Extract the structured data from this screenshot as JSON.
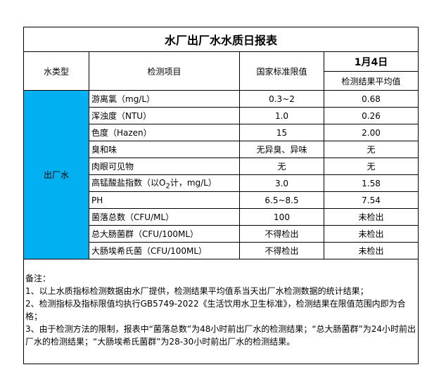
{
  "title": "水厂出厂水水质日报表",
  "headers": {
    "type": "水类型",
    "item": "检测项目",
    "standard": "国家标准限值",
    "date": "1月4日",
    "result": "检测结果平均值"
  },
  "water_type": "出厂水",
  "accent_color": "#00B0F0",
  "rows": [
    {
      "item": "游离氯（mg/L）",
      "standard": "0.3~2",
      "result": "0.68"
    },
    {
      "item": "浑浊度（NTU）",
      "standard": "1.0",
      "result": "0.26"
    },
    {
      "item": "色度（Hazen）",
      "standard": "15",
      "result": "2.00"
    },
    {
      "item": "臭和味",
      "standard": "无异臭、异味",
      "result": "无"
    },
    {
      "item": "肉眼可见物",
      "standard": "无",
      "result": "无"
    },
    {
      "item_pre": "高锰酸盐指数（以O",
      "item_sub": "2",
      "item_post": "计，mg/L）",
      "standard": "3.0",
      "result": "1.58"
    },
    {
      "item": "PH",
      "standard": "6.5~8.5",
      "result": "7.54"
    },
    {
      "item": "菌落总数（CFU/ML）",
      "standard": "100",
      "result": "未检出"
    },
    {
      "item": "总大肠菌群（CFU/100ML）",
      "standard": "不得检出",
      "result": "未检出"
    },
    {
      "item": "大肠埃希氏菌（CFU/100ML）",
      "standard": "不得检出",
      "result": "未检出"
    }
  ],
  "notes": [
    "备注：",
    "1、以上水质指标检测数据由水厂提供，检测结果平均值系当天出厂水检测数据的统计结果；",
    "2、检测指标及指标限值均执行GB5749-2022《生活饮用水卫生标准》，检测结果在限值范围内即为合格；",
    "3、由于检测方法的限制，报表中“菌落总数”为48小时前出厂水的检测结果；“总大肠菌群”为24小时前出厂水的检测结果；“大肠埃希氏菌群”为28-30小时前出厂水的检测结果。"
  ]
}
